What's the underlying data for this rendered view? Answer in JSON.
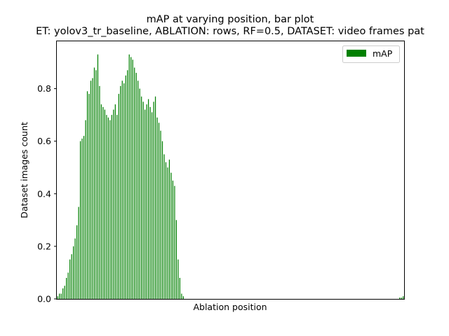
{
  "chart_data": {
    "type": "bar",
    "title": "mAP at varying position, bar plot",
    "subtitle": "ET: yolov3_tr_baseline, ABLATION: rows, RF=0.5, DATASET: video frames pat",
    "xlabel": "Ablation position",
    "ylabel": "Dataset images count",
    "ylim": [
      0,
      0.98
    ],
    "yticks": [
      "0.0",
      "0.2",
      "0.4",
      "0.6",
      "0.8"
    ],
    "xticks": [],
    "grid": false,
    "legend_position": "top-right",
    "series": [
      {
        "name": "mAP",
        "color": "#008000",
        "values": [
          0.01,
          0.02,
          0.02,
          0.04,
          0.05,
          0.08,
          0.1,
          0.15,
          0.17,
          0.2,
          0.23,
          0.28,
          0.35,
          0.6,
          0.61,
          0.62,
          0.68,
          0.79,
          0.78,
          0.83,
          0.84,
          0.88,
          0.87,
          0.93,
          0.81,
          0.74,
          0.73,
          0.72,
          0.7,
          0.69,
          0.68,
          0.7,
          0.72,
          0.74,
          0.7,
          0.78,
          0.81,
          0.83,
          0.82,
          0.85,
          0.87,
          0.93,
          0.92,
          0.91,
          0.88,
          0.86,
          0.83,
          0.8,
          0.77,
          0.75,
          0.72,
          0.74,
          0.76,
          0.73,
          0.71,
          0.75,
          0.77,
          0.69,
          0.67,
          0.64,
          0.6,
          0.55,
          0.52,
          0.5,
          0.53,
          0.48,
          0.45,
          0.43,
          0.3,
          0.15,
          0.08,
          0.02,
          0.01,
          0.0,
          0.0,
          0.0,
          0.0,
          0.0,
          0.0,
          0.0,
          0.0,
          0.0,
          0.0,
          0.0,
          0.0,
          0.0,
          0.0,
          0.0,
          0.0,
          0.0,
          0.0,
          0.0,
          0.0,
          0.0,
          0.0,
          0.0,
          0.0,
          0.0,
          0.0,
          0.0,
          0.0,
          0.0,
          0.0,
          0.0,
          0.0,
          0.0,
          0.0,
          0.0,
          0.0,
          0.0,
          0.0,
          0.0,
          0.0,
          0.0,
          0.0,
          0.0,
          0.0,
          0.0,
          0.0,
          0.0,
          0.0,
          0.0,
          0.0,
          0.0,
          0.0,
          0.0,
          0.0,
          0.0,
          0.0,
          0.0,
          0.0,
          0.0,
          0.0,
          0.0,
          0.0,
          0.0,
          0.0,
          0.0,
          0.0,
          0.0,
          0.0,
          0.0,
          0.0,
          0.0,
          0.0,
          0.0,
          0.0,
          0.0,
          0.0,
          0.0,
          0.0,
          0.0,
          0.0,
          0.0,
          0.0,
          0.0,
          0.0,
          0.0,
          0.0,
          0.0,
          0.0,
          0.0,
          0.0,
          0.0,
          0.0,
          0.0,
          0.0,
          0.0,
          0.0,
          0.0,
          0.0,
          0.0,
          0.0,
          0.0,
          0.0,
          0.0,
          0.0,
          0.0,
          0.0,
          0.0,
          0.0,
          0.0,
          0.0,
          0.0,
          0.0,
          0.0,
          0.0,
          0.0,
          0.0,
          0.0,
          0.0,
          0.0,
          0.0,
          0.0,
          0.0,
          0.0,
          0.005,
          0.005,
          0.01
        ]
      }
    ]
  }
}
